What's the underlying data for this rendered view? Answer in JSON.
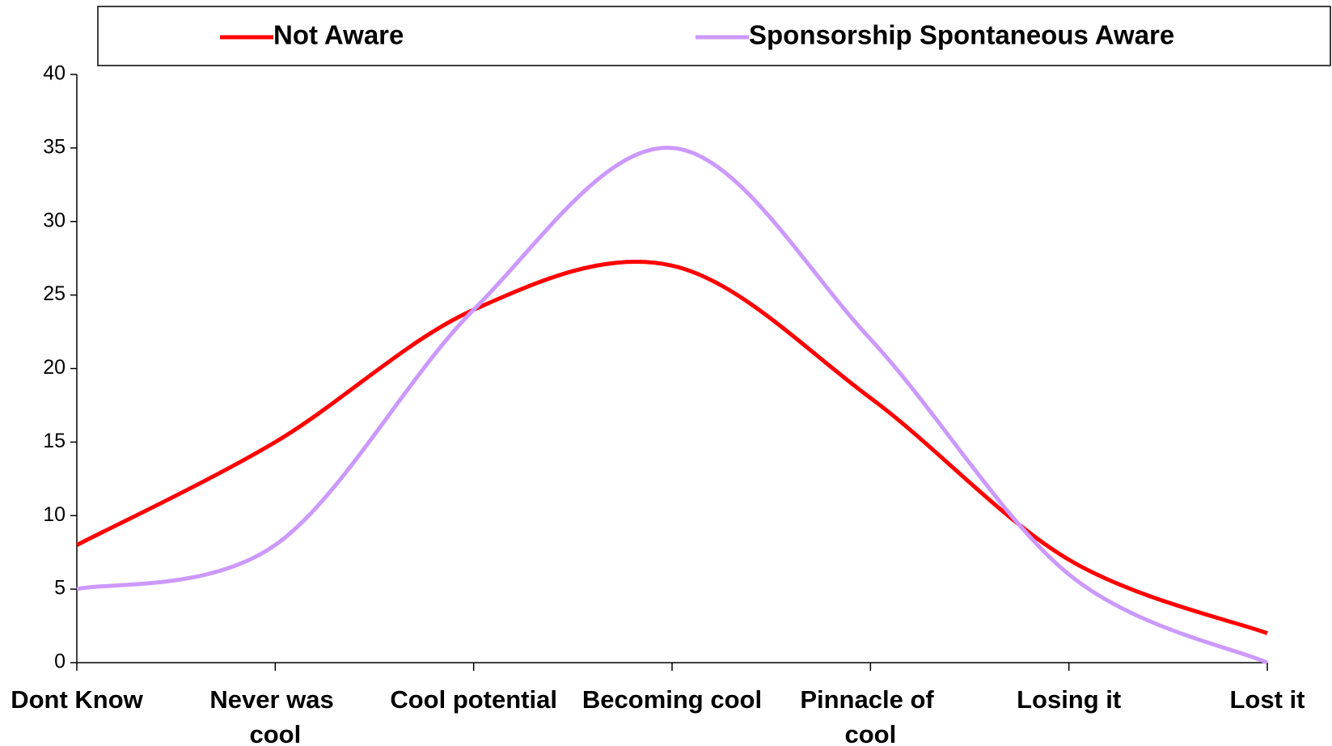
{
  "chart_data": {
    "type": "line",
    "categories": [
      "Dont Know",
      "Never was cool",
      "Cool potential",
      "Becoming cool",
      "Pinnacle of cool",
      "Losing it",
      "Lost it"
    ],
    "series": [
      {
        "name": "Not Aware",
        "color": "#ff0000",
        "values": [
          8,
          15,
          24,
          27,
          18,
          7,
          2
        ]
      },
      {
        "name": "Sponsorship Spontaneous Aware",
        "color": "#cc99ff",
        "values": [
          5,
          8,
          24,
          35,
          22,
          6,
          0
        ]
      }
    ],
    "ylim": [
      0,
      40
    ],
    "yticks": [
      0,
      5,
      10,
      15,
      20,
      25,
      30,
      35,
      40
    ],
    "smooth": true,
    "legend": "top"
  }
}
